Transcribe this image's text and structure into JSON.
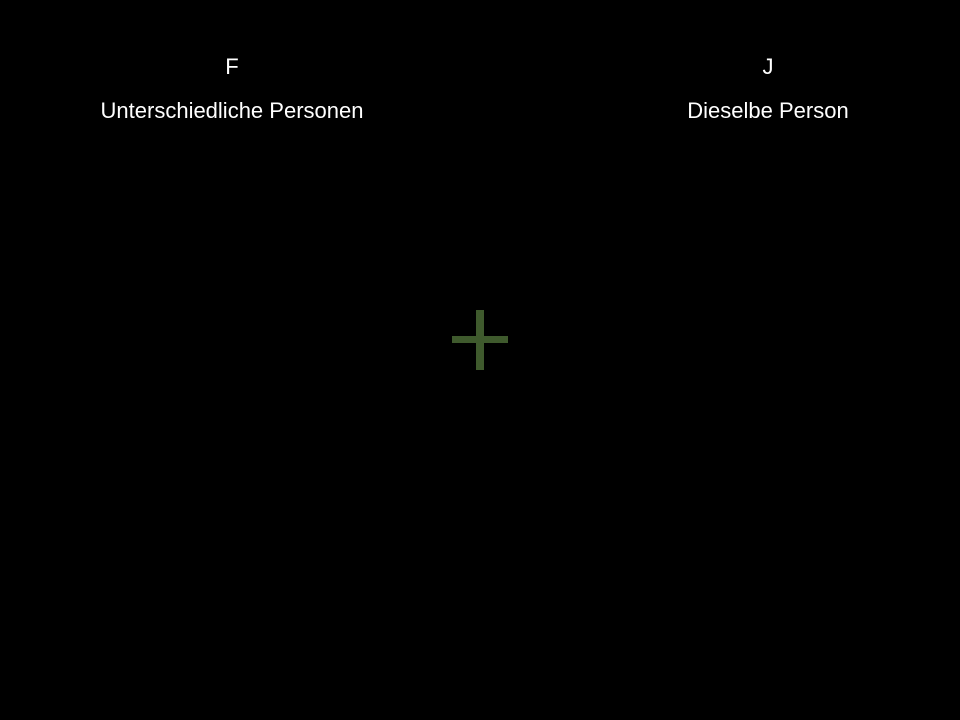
{
  "left_response": {
    "key": "F",
    "meaning": "Unterschiedliche Personen"
  },
  "right_response": {
    "key": "J",
    "meaning": "Dieselbe Person"
  },
  "fixation": {
    "icon": "plus-icon",
    "color": "#3f5a2d"
  },
  "colors": {
    "background": "#000000",
    "text": "#ffffff"
  }
}
